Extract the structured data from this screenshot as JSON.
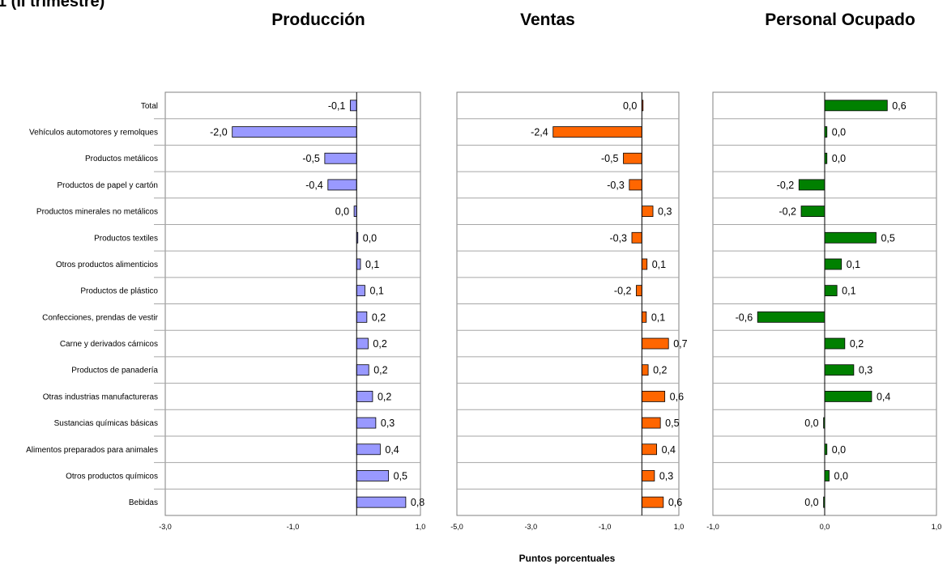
{
  "heading_fragment": "1 (II trimestre)",
  "xlabel": "Puntos porcentuales",
  "chart_data": [
    {
      "type": "bar",
      "orientation": "horizontal",
      "title": "Producción",
      "color": "#9999ff",
      "xlim": [
        -3.0,
        1.0
      ],
      "ticks": [
        "-3,0",
        "-1,0",
        "1,0"
      ],
      "tick_values": [
        -3,
        -1,
        1
      ],
      "categories": [
        "Total",
        "Vehículos automotores y remolques",
        "Productos metálicos",
        "Productos de papel y cartón",
        "Productos minerales no metálicos",
        "Productos textiles",
        "Otros productos alimenticios",
        "Productos de plástico",
        "Confecciones, prendas de vestir",
        "Carne y derivados cárnicos",
        "Productos de panadería",
        "Otras industrias manufactureras",
        "Sustancias químicas básicas",
        "Alimentos preparados para animales",
        "Otros productos químicos",
        "Bebidas"
      ],
      "values": [
        -0.1,
        -1.95,
        -0.5,
        -0.45,
        -0.04,
        0.01,
        0.06,
        0.13,
        0.16,
        0.18,
        0.19,
        0.25,
        0.3,
        0.37,
        0.5,
        0.77
      ],
      "labels": [
        "-0,1",
        "-2,0",
        "-0,5",
        "-0,4",
        "0,0",
        "0,0",
        "0,1",
        "0,1",
        "0,2",
        "0,2",
        "0,2",
        "0,2",
        "0,3",
        "0,4",
        "0,5",
        "0,8"
      ]
    },
    {
      "type": "bar",
      "orientation": "horizontal",
      "title": "Ventas",
      "color": "#ff6600",
      "xlim": [
        -5.0,
        1.0
      ],
      "ticks": [
        "-5,0",
        "-3,0",
        "-1,0",
        "1,0"
      ],
      "tick_values": [
        -5,
        -3,
        -1,
        1
      ],
      "values": [
        0.0,
        -2.4,
        -0.5,
        -0.34,
        0.3,
        -0.27,
        0.14,
        -0.15,
        0.12,
        0.72,
        0.17,
        0.62,
        0.5,
        0.4,
        0.34,
        0.58
      ],
      "labels": [
        "0,0",
        "-2,4",
        "-0,5",
        "-0,3",
        "0,3",
        "-0,3",
        "0,1",
        "-0,2",
        "0,1",
        "0,7",
        "0,2",
        "0,6",
        "0,5",
        "0,4",
        "0,3",
        "0,6"
      ]
    },
    {
      "type": "bar",
      "orientation": "horizontal",
      "title": "Personal Ocupado",
      "color": "#008000",
      "xlim": [
        -1.0,
        1.0
      ],
      "ticks": [
        "-1,0",
        "0,0",
        "1,0"
      ],
      "tick_values": [
        -1,
        0,
        1
      ],
      "values": [
        0.56,
        0.02,
        0.02,
        -0.23,
        -0.21,
        0.46,
        0.15,
        0.11,
        -0.6,
        0.18,
        0.26,
        0.42,
        -0.01,
        0.02,
        0.04,
        -0.01
      ],
      "labels": [
        "0,6",
        "0,0",
        "0,0",
        "-0,2",
        "-0,2",
        "0,5",
        "0,1",
        "0,1",
        "-0,6",
        "0,2",
        "0,3",
        "0,4",
        "0,0",
        "0,0",
        "0,0",
        "0,0"
      ]
    }
  ]
}
